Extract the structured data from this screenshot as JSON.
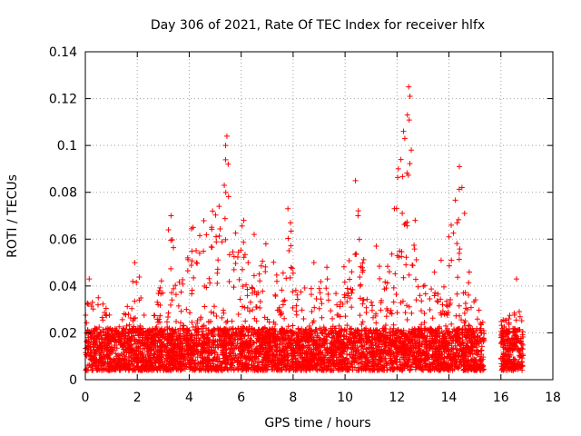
{
  "chart_data": {
    "type": "scatter",
    "title": "Day 306 of 2021, Rate Of TEC Index for receiver hlfx",
    "xlabel": "GPS time / hours",
    "ylabel": "ROTI / TECUs",
    "xlim": [
      0,
      18
    ],
    "ylim": [
      0,
      0.14
    ],
    "x_ticks": [
      0,
      2,
      4,
      6,
      8,
      10,
      12,
      14,
      16,
      18
    ],
    "y_ticks": [
      0,
      0.02,
      0.04,
      0.06,
      0.08,
      0.1,
      0.12,
      0.14
    ],
    "x_tick_labels": [
      "0",
      "2",
      "4",
      "6",
      "8",
      "10",
      "12",
      "14",
      "16",
      "18"
    ],
    "y_tick_labels": [
      "0",
      "0.02",
      "0.04",
      "0.06",
      "0.08",
      "0.1",
      "0.12",
      "0.14"
    ],
    "grid": true,
    "marker": "+",
    "color": "#ff0000",
    "series": [
      {
        "name": "ROTI",
        "envelope": {
          "x": [
            0,
            0.1,
            0.2,
            0.5,
            1.0,
            1.5,
            1.9,
            2.1,
            2.5,
            3.0,
            3.3,
            3.7,
            4.0,
            4.5,
            4.9,
            5.2,
            5.4,
            5.5,
            5.7,
            6.0,
            6.5,
            7.0,
            7.5,
            7.8,
            8.2,
            8.8,
            9.2,
            9.7,
            10.0,
            10.5,
            10.8,
            11.2,
            11.5,
            11.9,
            12.1,
            12.3,
            12.45,
            12.6,
            12.8,
            13.2,
            13.6,
            14.0,
            14.4,
            14.6,
            15.0,
            15.3,
            15.6,
            16.0,
            16.3,
            16.6,
            16.85
          ],
          "peak": [
            0.03,
            0.043,
            0.035,
            0.035,
            0.03,
            0.033,
            0.05,
            0.045,
            0.02,
            0.047,
            0.07,
            0.045,
            0.065,
            0.07,
            0.07,
            0.075,
            0.104,
            0.092,
            0.06,
            0.07,
            0.048,
            0.062,
            0.04,
            0.073,
            0.05,
            0.04,
            0.048,
            0.042,
            0.05,
            0.085,
            0.04,
            0.057,
            0.04,
            0.074,
            0.095,
            0.106,
            0.125,
            0.068,
            0.05,
            0.04,
            0.05,
            0.062,
            0.091,
            0.06,
            0.035,
            0.028,
            0.0,
            0.025,
            0.028,
            0.043,
            0.028
          ]
        },
        "points": [
          [
            0.15,
            0.043
          ],
          [
            0.5,
            0.035
          ],
          [
            1.9,
            0.05
          ],
          [
            3.3,
            0.07
          ],
          [
            3.2,
            0.064
          ],
          [
            4.15,
            0.065
          ],
          [
            4.4,
            0.054
          ],
          [
            4.9,
            0.072
          ],
          [
            5.15,
            0.074
          ],
          [
            5.4,
            0.1
          ],
          [
            5.45,
            0.104
          ],
          [
            5.5,
            0.092
          ],
          [
            5.35,
            0.083
          ],
          [
            6.1,
            0.068
          ],
          [
            6.5,
            0.062
          ],
          [
            7.8,
            0.073
          ],
          [
            7.9,
            0.067
          ],
          [
            8.8,
            0.05
          ],
          [
            9.3,
            0.048
          ],
          [
            10.4,
            0.085
          ],
          [
            10.5,
            0.07
          ],
          [
            11.2,
            0.057
          ],
          [
            11.9,
            0.073
          ],
          [
            12.05,
            0.09
          ],
          [
            12.15,
            0.094
          ],
          [
            12.25,
            0.106
          ],
          [
            12.3,
            0.103
          ],
          [
            12.45,
            0.125
          ],
          [
            12.5,
            0.121
          ],
          [
            12.4,
            0.113
          ],
          [
            12.55,
            0.098
          ],
          [
            12.7,
            0.068
          ],
          [
            14.0,
            0.061
          ],
          [
            14.4,
            0.091
          ],
          [
            14.5,
            0.082
          ],
          [
            14.6,
            0.071
          ],
          [
            16.6,
            0.043
          ],
          [
            16.3,
            0.026
          ]
        ]
      }
    ]
  }
}
